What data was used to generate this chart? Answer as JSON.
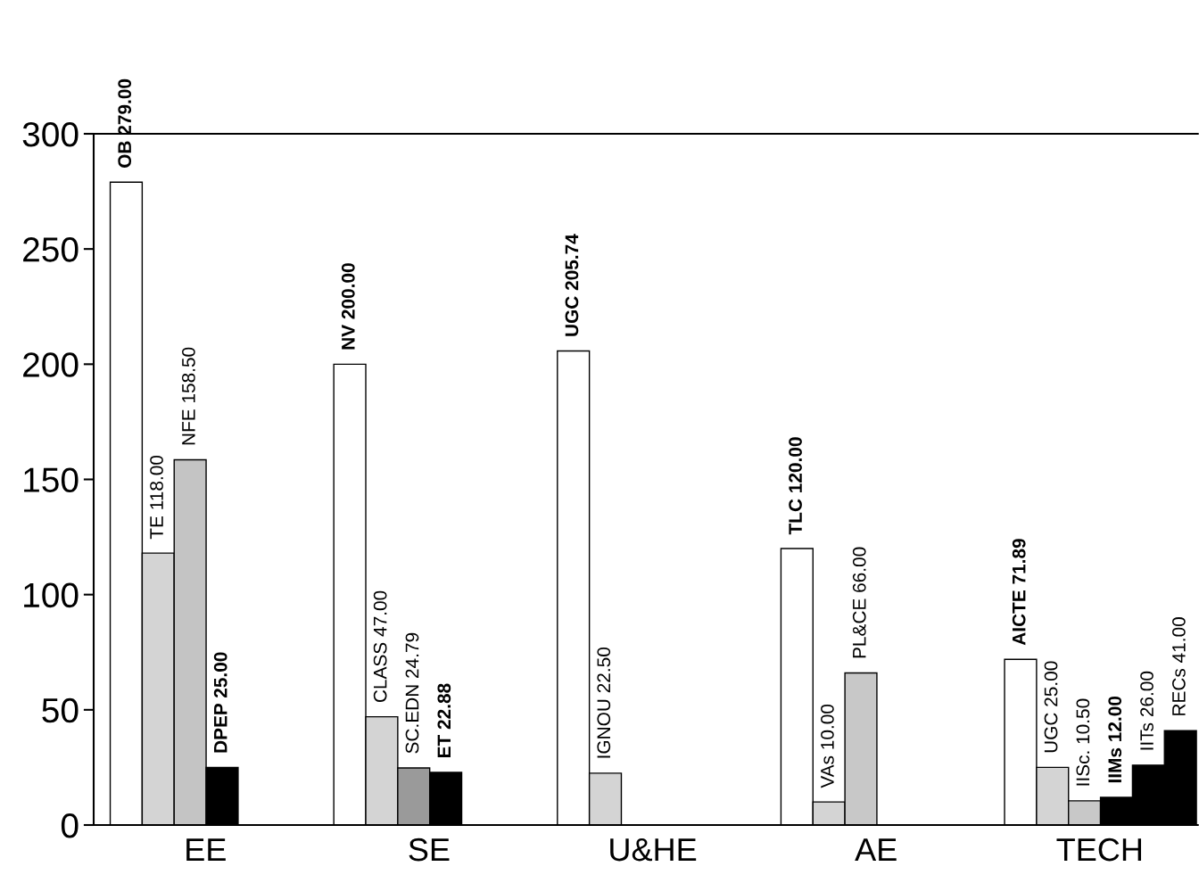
{
  "chart_data": {
    "type": "bar",
    "categories": [
      "EE",
      "SE",
      "U&HE",
      "AE",
      "TECH"
    ],
    "series": [
      {
        "colors": [
          "#ffffff",
          "#ffffff",
          "#ffffff",
          "#ffffff",
          "#ffffff"
        ],
        "values": [
          279,
          200,
          205.74,
          120,
          71.89
        ],
        "value_labels": [
          "OB 279.00",
          "NV 200.00",
          "UGC 205.74",
          "TLC 120.00",
          "AICTE 71.89"
        ]
      },
      {
        "colors": [
          "#d4d4d4",
          "#d4d4d4",
          "#d4d4d4",
          "#d4d4d4",
          "#d4d4d4"
        ],
        "values": [
          118,
          47,
          22.5,
          10,
          25
        ],
        "value_labels": [
          "TE 118.00",
          "CLASS 47.00",
          "IGNOU 22.50",
          "VAs 10.00",
          "UGC 25.00"
        ]
      },
      {
        "colors": [
          "#c4c4c4",
          "#9a9a9a",
          null,
          "#c8c8c8",
          "#c8c8c8"
        ],
        "values": [
          158.5,
          24.79,
          null,
          66,
          10.5
        ],
        "value_labels": [
          "NFE 158.50",
          "SC.EDN 24.79",
          null,
          "PL&CE 66.00",
          "IISc. 10.50"
        ]
      },
      {
        "colors": [
          "#000000",
          "#000000",
          null,
          null,
          "#000000"
        ],
        "values": [
          25,
          22.88,
          null,
          null,
          12
        ],
        "value_labels": [
          "DPEP 25.00",
          "ET 22.88",
          null,
          null,
          "IIMs 12.00"
        ]
      },
      {
        "colors": [
          null,
          null,
          null,
          null,
          "#000000"
        ],
        "values": [
          null,
          null,
          null,
          null,
          26
        ],
        "value_labels": [
          null,
          null,
          null,
          null,
          "IITs 26.00"
        ]
      },
      {
        "colors": [
          null,
          null,
          null,
          null,
          "#000000"
        ],
        "values": [
          null,
          null,
          null,
          null,
          41
        ],
        "value_labels": [
          null,
          null,
          null,
          null,
          "RECs 41.00"
        ]
      }
    ],
    "ylim": [
      0,
      300
    ],
    "yticks": [
      0,
      50,
      100,
      150,
      200,
      250,
      300
    ],
    "grid": false,
    "legend": false
  }
}
